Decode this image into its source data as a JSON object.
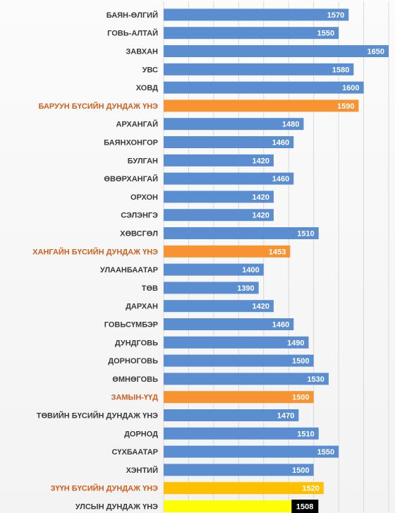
{
  "chart_data": {
    "type": "bar",
    "orientation": "horizontal",
    "categories": [
      "БАЯН-ӨЛГИЙ",
      "ГОВЬ-АЛТАЙ",
      "ЗАВХАН",
      "УВС",
      "ХОВД",
      "БАРУУН БҮСИЙН ДУНДАЖ ҮНЭ",
      "АРХАНГАЙ",
      "БАЯНХОНГОР",
      "БУЛГАН",
      "ӨВӨРХАНГАЙ",
      "ОРХОН",
      "СЭЛЭНГЭ",
      "ХӨВСГӨЛ",
      "ХАНГАЙН БҮСИЙН ДУНДАЖ ҮНЭ",
      "УЛААНБААТАР",
      "ТӨВ",
      "ДАРХАН",
      "ГОВЬСҮМБЭР",
      "ДУНДГОВЬ",
      "ДОРНОГОВЬ",
      "ӨМНӨГОВЬ",
      "ЗАМЫН-ҮҮД",
      "ТӨВИЙН БҮСИЙН ДУНДАЖ ҮНЭ",
      "ДОРНОД",
      "СҮХБААТАР",
      "ХЭНТИЙ",
      "ЗҮҮН БҮСИЙН ДУНДАЖ ҮНЭ",
      "УЛСЫН ДУНДАЖ ҮНЭ"
    ],
    "values": [
      1570,
      1550,
      1650,
      1580,
      1600,
      1590,
      1480,
      1460,
      1420,
      1460,
      1420,
      1420,
      1510,
      1453,
      1400,
      1390,
      1420,
      1460,
      1490,
      1500,
      1530,
      1500,
      1470,
      1510,
      1550,
      1500,
      1520,
      1508
    ],
    "xlim": [
      1200,
      1650
    ],
    "grid": true,
    "legend": "none",
    "colors": {
      "default": "#5b8ed1",
      "regional_average": "#f79330",
      "zamyn_uud": "#f79330",
      "east_average": "#ffc000",
      "national_average": "#ffff00",
      "national_value_box": "#000000"
    },
    "bar_color_keys": [
      "default",
      "default",
      "default",
      "default",
      "default",
      "regional_average",
      "default",
      "default",
      "default",
      "default",
      "default",
      "default",
      "default",
      "regional_average",
      "default",
      "default",
      "default",
      "default",
      "default",
      "default",
      "default",
      "zamyn_uud",
      "default",
      "default",
      "default",
      "default",
      "east_average",
      "national_average"
    ]
  }
}
